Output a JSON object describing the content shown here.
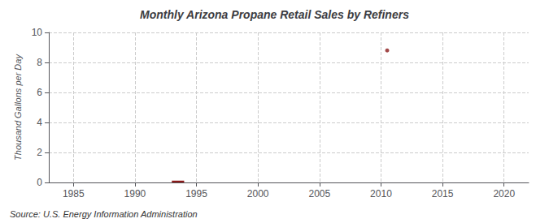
{
  "chart_data": {
    "type": "bar",
    "title": "Monthly Arizona Propane Retail Sales by Refiners",
    "ylabel": "Thousand Gallons per Day",
    "annotation": "Source: U.S. Energy Information Administration",
    "series": [
      {
        "type": "bar",
        "color": "#8b1a1a",
        "x": [
          1993.5
        ],
        "values": [
          0.12
        ]
      },
      {
        "type": "scatter",
        "color": "#8b1a1a",
        "x": [
          2010.5
        ],
        "values": [
          8.8
        ]
      }
    ],
    "xlim": [
      1983,
      2022
    ],
    "xticks": [
      1985,
      1990,
      1995,
      2000,
      2005,
      2010,
      2015,
      2020
    ],
    "ylim": [
      0,
      10
    ],
    "yticks": [
      0,
      2,
      4,
      6,
      8,
      10
    ],
    "grid": true
  }
}
